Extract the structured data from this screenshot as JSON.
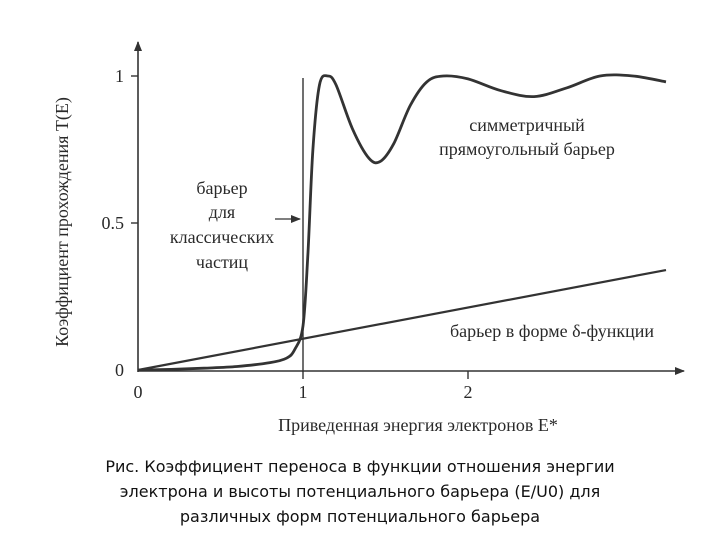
{
  "chart_data": {
    "type": "line",
    "xlabel": "Приведенная энергия электронов E*",
    "ylabel": "Коэффициент прохождения T(E)",
    "xlim": [
      0,
      3.3
    ],
    "ylim": [
      0,
      1.1
    ],
    "x_ticks": [
      "0",
      "1",
      "2"
    ],
    "y_ticks": [
      "0",
      "0.5",
      "1"
    ],
    "series": [
      {
        "name": "симметричный прямоугольный барьер",
        "color": "#333333",
        "x": [
          0,
          0.2,
          0.4,
          0.6,
          0.8,
          0.9,
          0.95,
          1.0,
          1.03,
          1.06,
          1.1,
          1.15,
          1.2,
          1.3,
          1.4,
          1.47,
          1.55,
          1.65,
          1.75,
          1.85,
          2.0,
          2.2,
          2.4,
          2.6,
          2.8,
          3.0,
          3.2
        ],
        "y": [
          0,
          0.002,
          0.006,
          0.012,
          0.025,
          0.04,
          0.07,
          0.15,
          0.4,
          0.75,
          0.97,
          1.0,
          0.97,
          0.82,
          0.72,
          0.71,
          0.77,
          0.9,
          0.98,
          1.0,
          0.99,
          0.95,
          0.93,
          0.96,
          1.0,
          1.0,
          0.98
        ]
      },
      {
        "name": "барьер в форме δ-функции",
        "color": "#333333",
        "x": [
          0,
          3.2
        ],
        "y": [
          0,
          0.34
        ]
      }
    ],
    "annotations": {
      "classical": [
        "барьер",
        "для",
        "классических",
        "частиц"
      ],
      "rect": [
        "симметричный",
        "прямоугольный барьер"
      ],
      "delta": "барьер в форме δ-функции"
    }
  },
  "caption": {
    "lines": [
      "Рис. Коэффициент переноса в функции отношения энергии",
      "электрона и высоты потенциального барьера (E/U0) для",
      "различных форм потенциального барьера"
    ]
  }
}
